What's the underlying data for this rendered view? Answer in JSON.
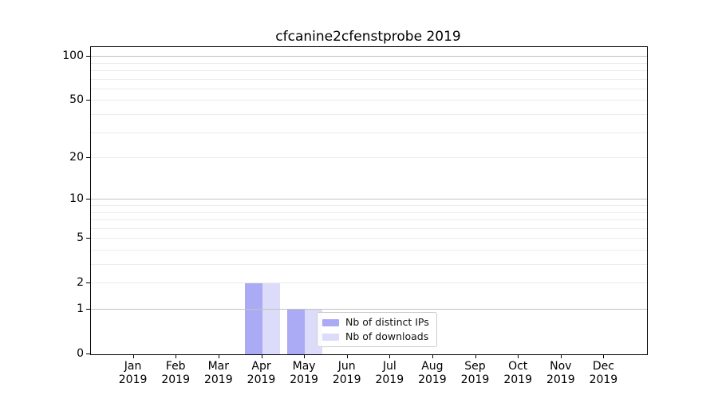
{
  "chart_data": {
    "type": "bar",
    "title": "cfcanine2cfenstprobe 2019",
    "x_axis": {
      "months": [
        "Jan",
        "Feb",
        "Mar",
        "Apr",
        "May",
        "Jun",
        "Jul",
        "Aug",
        "Sep",
        "Oct",
        "Nov",
        "Dec"
      ],
      "year": "2019"
    },
    "y_axis": {
      "scale": "log10(1+x)",
      "ticks": [
        0,
        1,
        2,
        5,
        10,
        20,
        50,
        100
      ],
      "top_value": 115
    },
    "grid": {
      "major_values": [
        1,
        10,
        100
      ],
      "minor_values": [
        2,
        3,
        4,
        5,
        6,
        7,
        8,
        9,
        20,
        30,
        40,
        50,
        60,
        70,
        80,
        90
      ],
      "major_color": "#c2c2c2",
      "minor_color": "#ececec"
    },
    "series": [
      {
        "name": "Nb of distinct IPs",
        "color": "#aaaaf5",
        "values": [
          0,
          0,
          0,
          2,
          1,
          0,
          0,
          0,
          0,
          0,
          0,
          0
        ]
      },
      {
        "name": "Nb of downloads",
        "color": "#dcdcfa",
        "values": [
          0,
          0,
          0,
          2,
          1,
          0,
          0,
          0,
          0,
          0,
          0,
          0
        ]
      }
    ],
    "legend": {
      "labels": [
        "Nb of distinct IPs",
        "Nb of downloads"
      ],
      "position": "inside-bottom-center"
    }
  }
}
